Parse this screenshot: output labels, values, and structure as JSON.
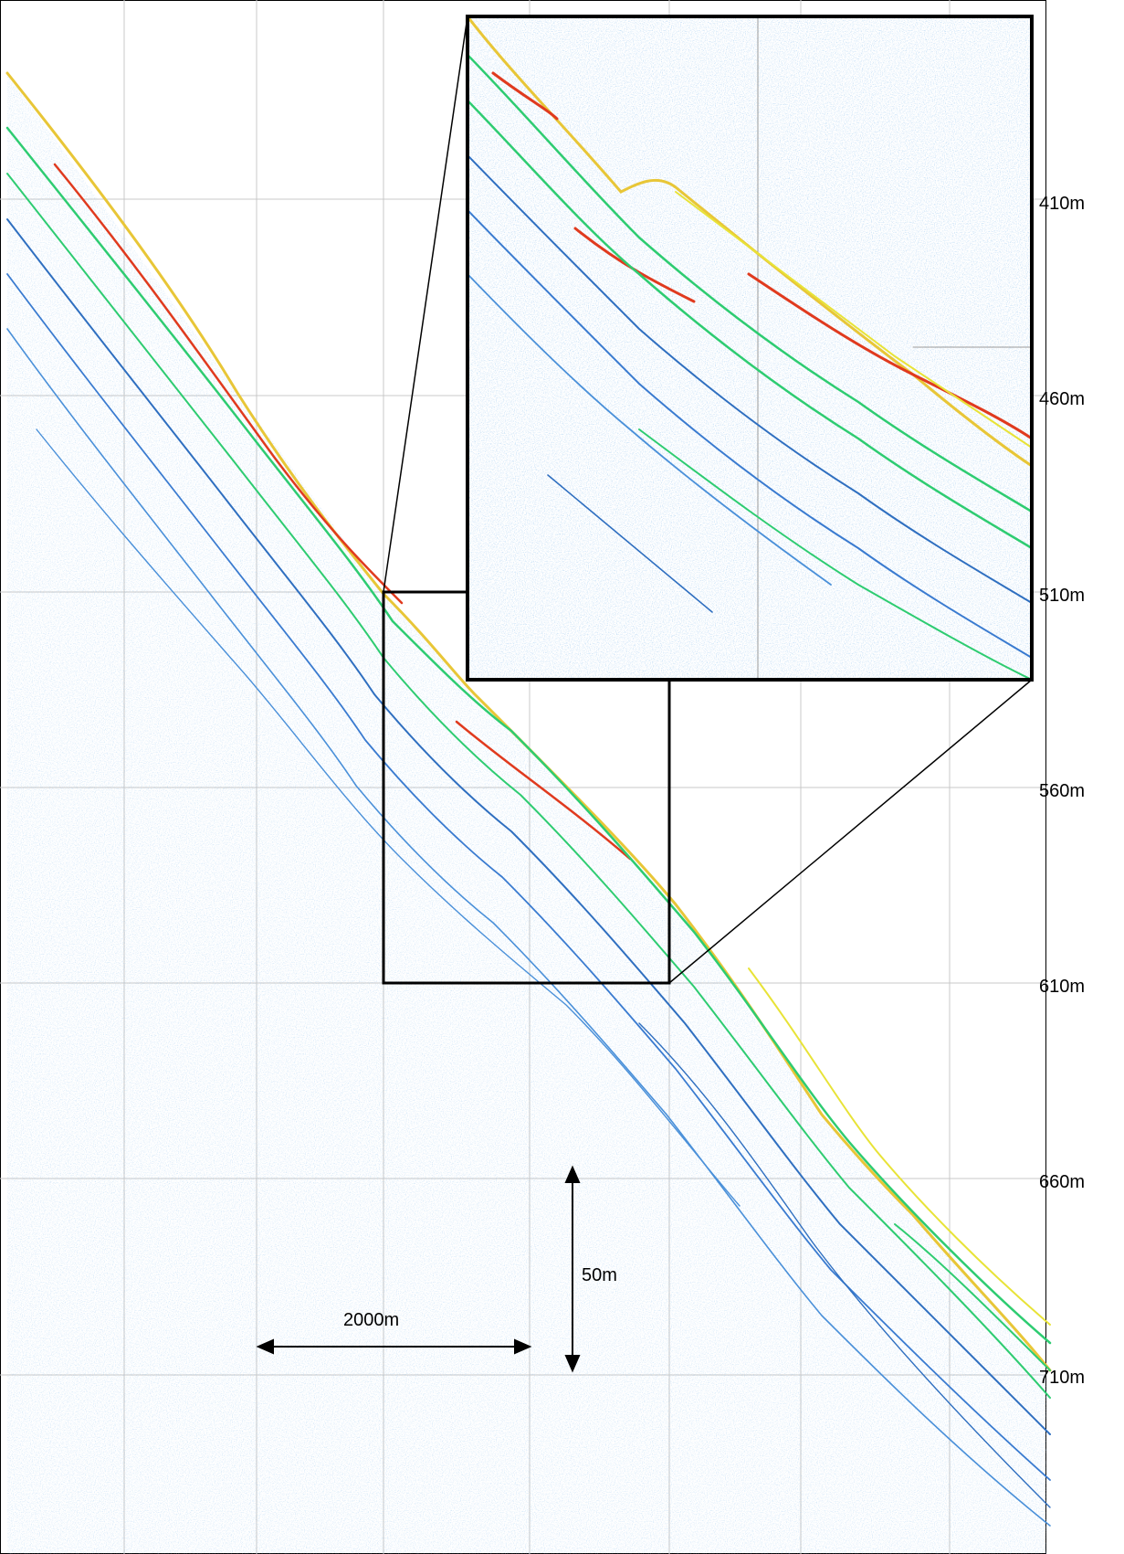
{
  "depth_axis": {
    "unit": "m",
    "labels": [
      "410m",
      "460m",
      "510m",
      "560m",
      "610m",
      "660m",
      "710m"
    ]
  },
  "scale_bars": {
    "horizontal": "2000m",
    "vertical": "50m"
  },
  "colors": {
    "grid": "#c8c8c8",
    "reflector_weak": "#4a90d9",
    "reflector_mid": "#2ecc71",
    "reflector_strong": "#e8e337",
    "reflector_peak": "#e03a1e",
    "frame": "#000000"
  }
}
